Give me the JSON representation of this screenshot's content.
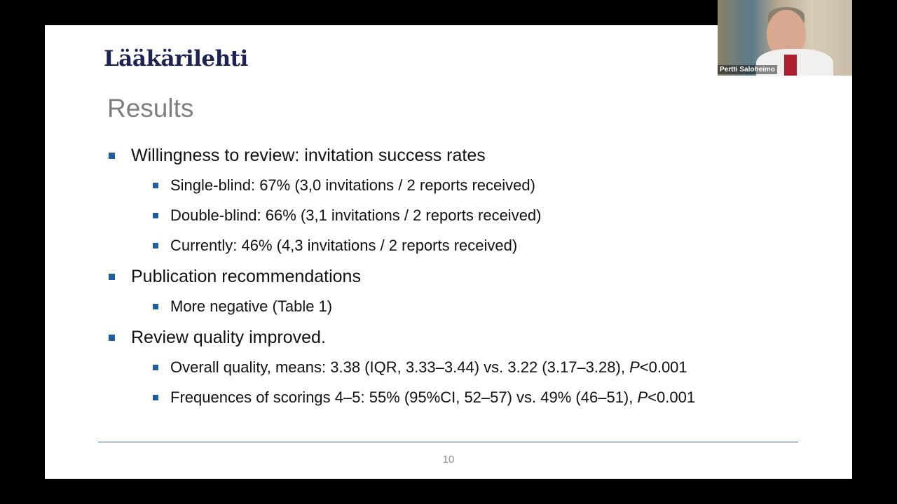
{
  "slide": {
    "logo": "Lääkärilehti",
    "title": "Results",
    "bullets": [
      {
        "text": "Willingness to review: invitation success rates",
        "items": [
          {
            "segments": [
              {
                "text": "Single-blind: 67% (3,0 invitations / 2 reports received)"
              }
            ]
          },
          {
            "segments": [
              {
                "text": "Double-blind: 66% (3,1 invitations / 2 reports received)"
              }
            ]
          },
          {
            "segments": [
              {
                "text": "Currently: 46% (4,3 invitations / 2 reports received)"
              }
            ]
          }
        ]
      },
      {
        "text": "Publication recommendations",
        "items": [
          {
            "segments": [
              {
                "text": "More negative (Table 1)"
              }
            ]
          }
        ]
      },
      {
        "text": "Review quality improved.",
        "items": [
          {
            "segments": [
              {
                "text": "Overall quality, means: 3.38 (IQR, 3.33–3.44) vs. 3.22 (3.17–3.28), "
              },
              {
                "text": "P",
                "italic": true
              },
              {
                "text": "<0.001"
              }
            ]
          },
          {
            "segments": [
              {
                "text": "Frequences of scorings 4–5: 55% (95%CI, 52–57) vs. 49% (46–51), "
              },
              {
                "text": "P",
                "italic": true
              },
              {
                "text": "<0.001"
              }
            ]
          }
        ]
      }
    ],
    "page_number": "10"
  },
  "video": {
    "participant": "Pertti Saloheimo"
  }
}
